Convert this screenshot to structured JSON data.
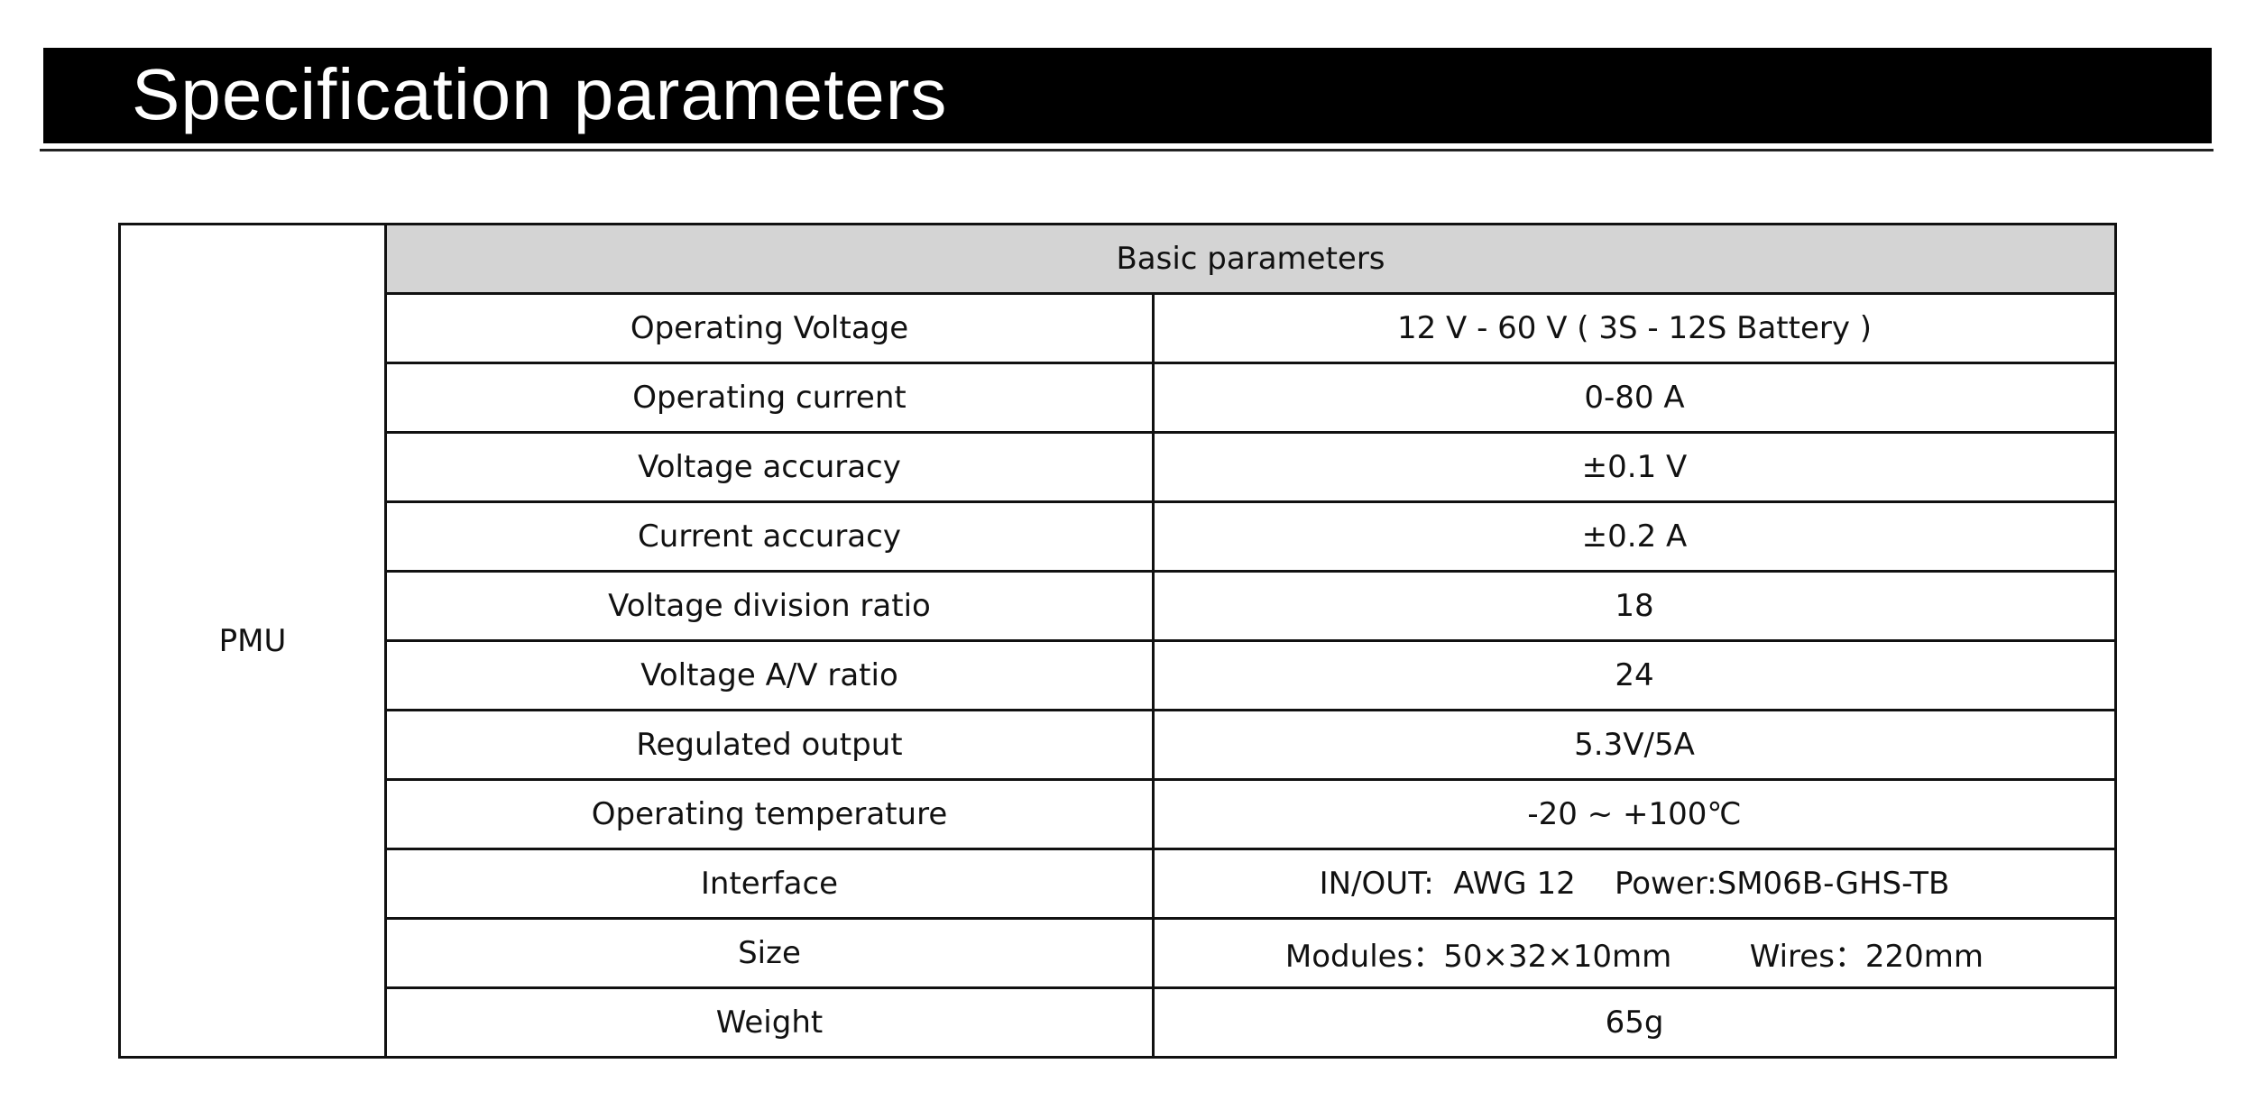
{
  "title": "Specification parameters",
  "table": {
    "group_label": "PMU",
    "section_header": "Basic parameters",
    "rows": [
      {
        "name": "Operating Voltage",
        "value": "12 V - 60 V ( 3S - 12S Battery )"
      },
      {
        "name": "Operating current",
        "value": "0-80 A"
      },
      {
        "name": "Voltage accuracy",
        "value": "±0.1 V"
      },
      {
        "name": "Current accuracy",
        "value": "±0.2 A"
      },
      {
        "name": "Voltage division ratio",
        "value": "18"
      },
      {
        "name": "Voltage A/V ratio",
        "value": "24"
      },
      {
        "name": "Regulated output",
        "value": "5.3V/5A"
      },
      {
        "name": "Operating temperature",
        "value": "-20 ~ +100℃"
      },
      {
        "name": "Interface",
        "value": "IN/OUT:  AWG 12    Power:SM06B-GHS-TB"
      },
      {
        "name": "Size",
        "value": "Modules：50×32×10mm        Wires：220mm"
      },
      {
        "name": "Weight",
        "value": "65g"
      }
    ]
  }
}
